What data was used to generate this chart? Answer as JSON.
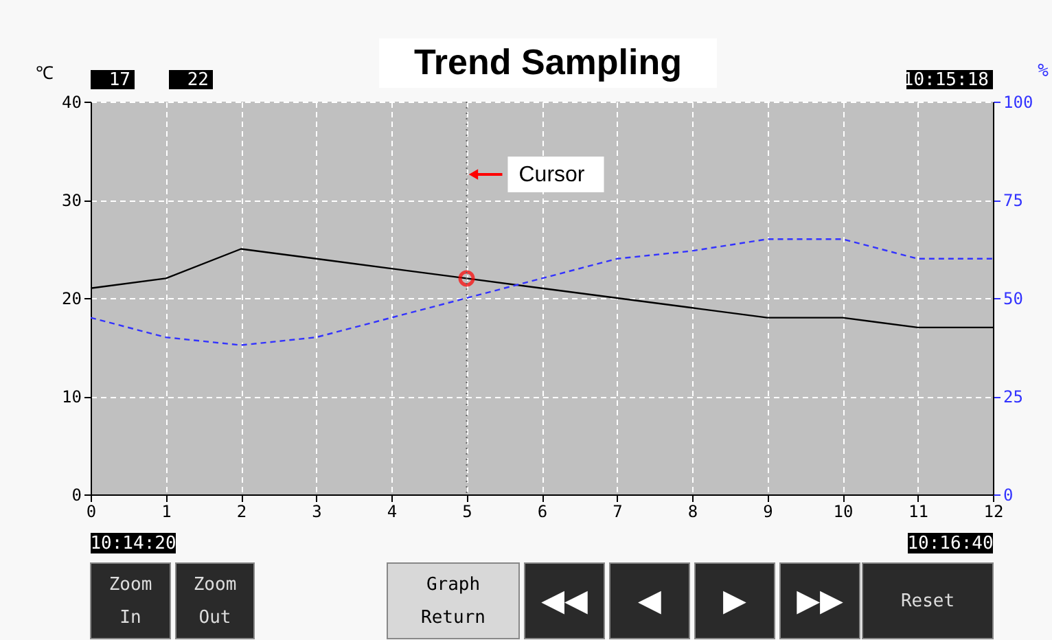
{
  "chart_data": {
    "type": "line",
    "title": "Trend Sampling",
    "ylabel": "℃",
    "y2label": "%",
    "x": [
      0,
      1,
      2,
      3,
      4,
      5,
      6,
      7,
      8,
      9,
      10,
      11,
      12
    ],
    "xlim": [
      0,
      12
    ],
    "xticks": [
      0,
      1,
      2,
      3,
      4,
      5,
      6,
      7,
      8,
      9,
      10,
      11,
      12
    ],
    "ylim": [
      0,
      40
    ],
    "yticks": [
      0,
      10,
      20,
      30,
      40
    ],
    "y2lim": [
      0,
      100
    ],
    "y2ticks": [
      0,
      25,
      50,
      75,
      100
    ],
    "grid": true,
    "series": [
      {
        "color": "#000000",
        "line_style": "solid",
        "values": [
          21,
          22,
          25,
          24,
          23,
          22,
          21,
          20,
          19,
          18,
          18,
          17,
          17
        ]
      },
      {
        "color": "#3333ff",
        "line_style": "dashed",
        "axis": "y2",
        "values": [
          45,
          40,
          38,
          40,
          45,
          50,
          55,
          60,
          62,
          65,
          65,
          60,
          60
        ]
      },
      {
        "type": "scatter",
        "marker": "circle",
        "color": "#ff0000",
        "x": [
          5
        ],
        "values": [
          22
        ]
      }
    ],
    "ref_lines": [
      {
        "axis": "x",
        "value": 5,
        "label": "Cursor",
        "color": "#606060",
        "line_style": "dotted"
      }
    ],
    "annotations": [
      "17",
      "22",
      "10:15:18",
      "10:14:20",
      "10:16:40",
      "Zoom In",
      "Zoom Out",
      "Graph Return",
      "Reset",
      "◀◀",
      "◀",
      "▶",
      "▶▶"
    ]
  }
}
